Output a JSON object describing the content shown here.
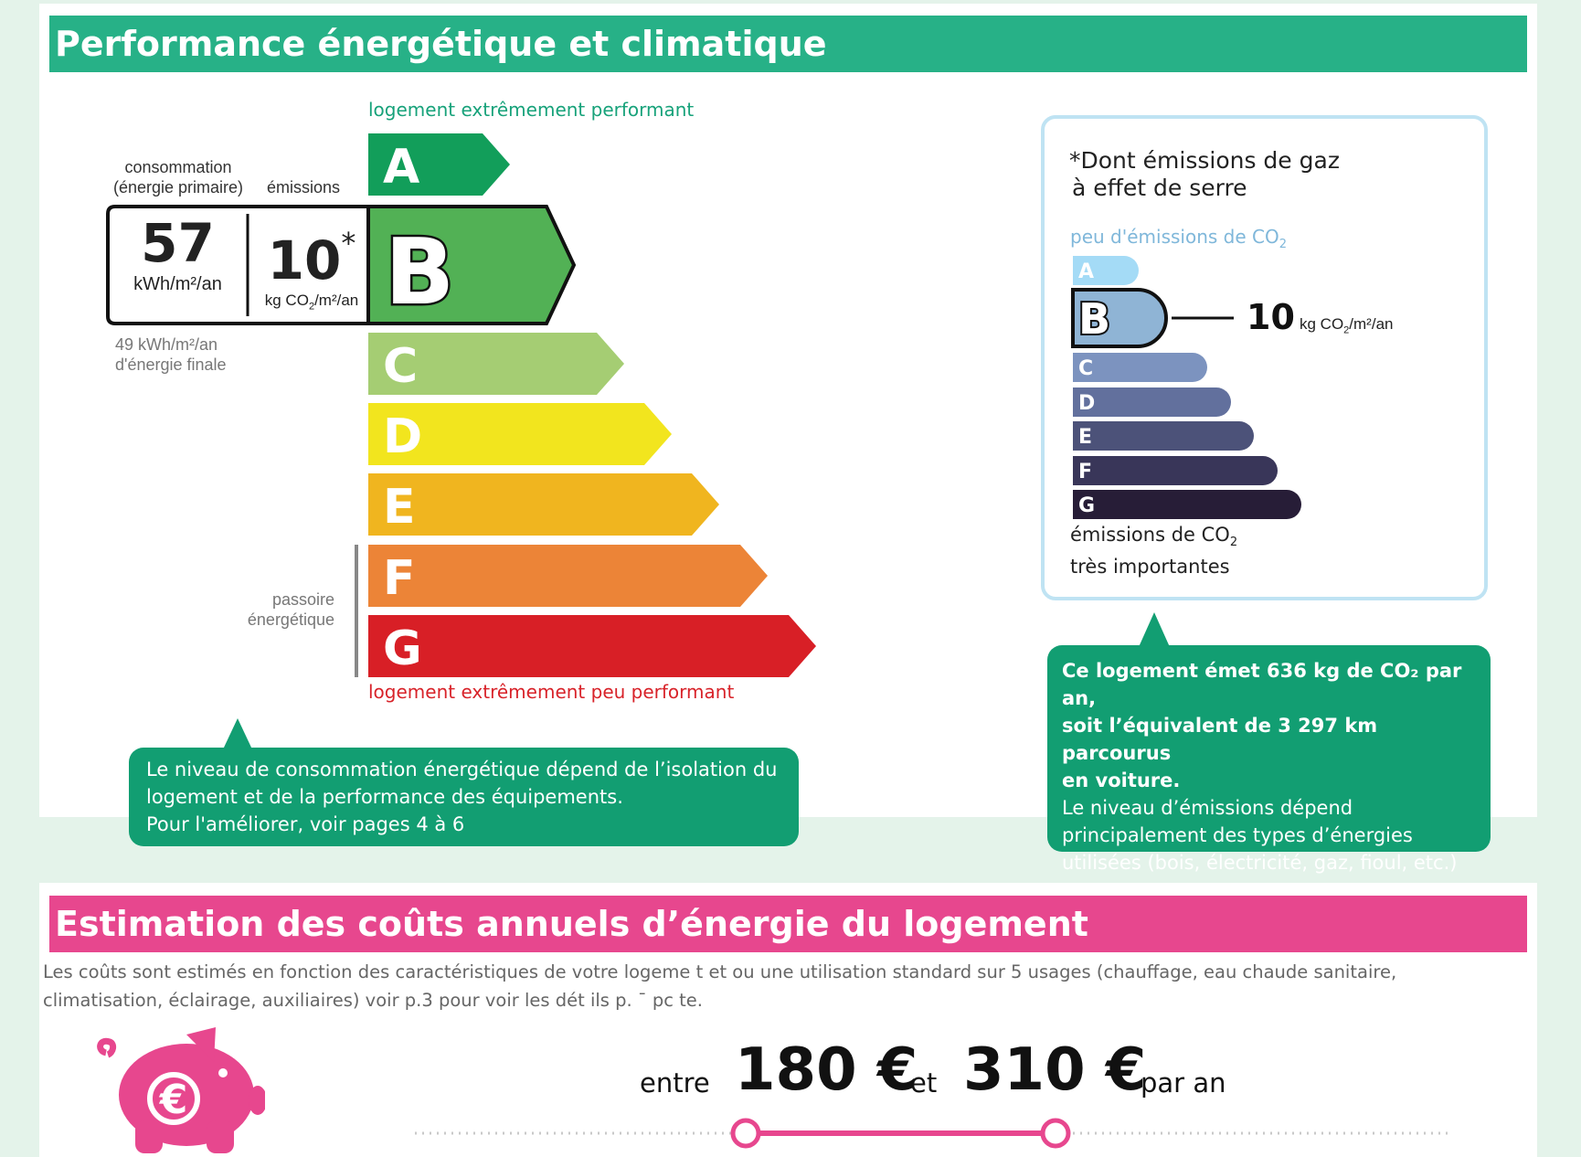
{
  "energy_section": {
    "title": "Performance énergétique et climatique",
    "top_caption": "logement extrêmement performant",
    "bottom_caption": "logement extrêmement peu performant",
    "consumption_label_1": "consommation",
    "consumption_label_2": "(énergie primaire)",
    "emissions_label": "émissions",
    "consumption_value": "57",
    "consumption_unit": "kWh/m²/an",
    "emissions_value": "10",
    "emissions_star": "*",
    "emissions_unit_prefix": "kg CO",
    "emissions_unit_sub": "2",
    "emissions_unit_suffix": "/m²/an",
    "final_energy_1": "49 kWh/m²/an",
    "final_energy_2": "d'énergie finale",
    "passoire_1": "passoire",
    "passoire_2": "énergétique",
    "current_class": "B",
    "classes": [
      {
        "letter": "A",
        "color": "#129e5a"
      },
      {
        "letter": "B",
        "color": "#52b155"
      },
      {
        "letter": "C",
        "color": "#a5cd73"
      },
      {
        "letter": "D",
        "color": "#f2e51e"
      },
      {
        "letter": "E",
        "color": "#f0b51f"
      },
      {
        "letter": "F",
        "color": "#ec8437"
      },
      {
        "letter": "G",
        "color": "#d81f26"
      }
    ],
    "bubble_line1": "Le niveau de consommation énergétique dépend de l’isolation du",
    "bubble_line2": "logement et de la performance des équipements.",
    "bubble_line3": "Pour l'améliorer, voir pages 4 à 6"
  },
  "co2_box": {
    "title_1": "*Dont émissions de gaz",
    "title_2": "à effet de serre",
    "top_caption": "peu d'émissions de CO",
    "top_caption_sub": "2",
    "bottom_caption_1": "émissions de CO",
    "bottom_caption_sub": "2",
    "bottom_caption_2": "très importantes",
    "current_class": "B",
    "value": "10",
    "unit_prefix": "kg CO",
    "unit_sub": "2",
    "unit_suffix": "/m²/an",
    "classes": [
      {
        "letter": "A",
        "color": "#a4dbf6"
      },
      {
        "letter": "B",
        "color": "#8fb4d5"
      },
      {
        "letter": "C",
        "color": "#7c93bf"
      },
      {
        "letter": "D",
        "color": "#62709d"
      },
      {
        "letter": "E",
        "color": "#4c5279"
      },
      {
        "letter": "F",
        "color": "#393659"
      },
      {
        "letter": "G",
        "color": "#271d37"
      }
    ]
  },
  "co2_bubble": {
    "bold_line1": "Ce logement émet 636 kg de CO₂ par an,",
    "bold_line2": "soit l’équivalent de 3 297 km parcourus",
    "bold_line3": "en voiture.",
    "line4": "Le niveau d’émissions dépend",
    "line5": "principalement des types d’énergies",
    "line6": "utilisées (bois, électricité, gaz, fioul, etc.)"
  },
  "cost_section": {
    "title": "Estimation des coûts annuels d’énergie du logement",
    "description_1": "Les coûts sont estimés en fonction des caractéristiques de votre logeme t et  ou  une utilisation standard sur 5 usages (chauffage, eau chaude sanitaire,",
    "description_2": "climatisation, éclairage, auxiliaires) voir p.3 pour voir les dét  ils p. ˉ pc  te.",
    "word_between": "entre",
    "min_cost": "180 €",
    "word_and": "et",
    "max_cost": "310 €",
    "word_per_year": "par an",
    "piggy_symbol": "€",
    "accent_color": "#e7478e"
  }
}
